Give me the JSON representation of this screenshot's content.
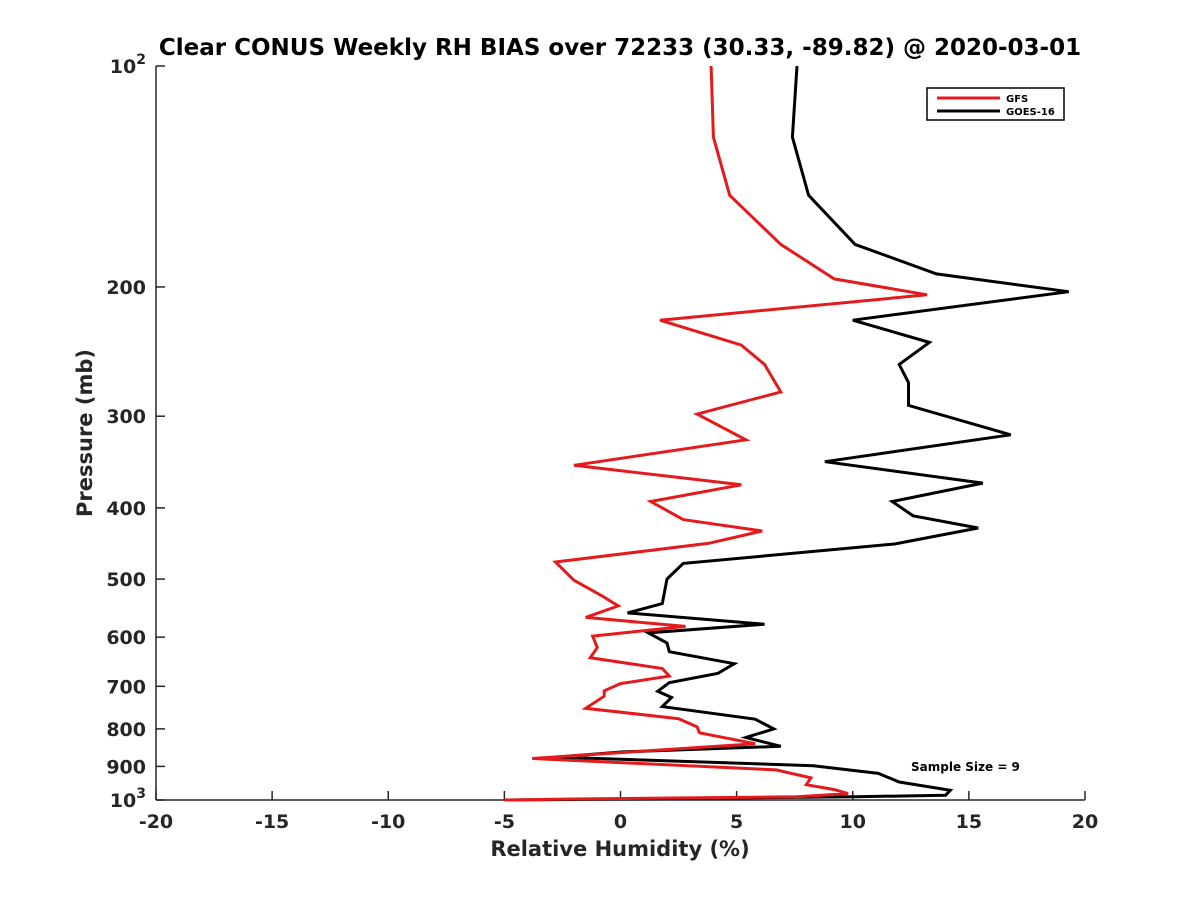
{
  "chart_data": {
    "type": "line",
    "title": "Clear CONUS Weekly RH BIAS over 72233 (30.33, -89.82) @ 2020-03-01",
    "xlabel": "Relative Humidity (%)",
    "ylabel": "Pressure (mb)",
    "xlim": [
      -20,
      20
    ],
    "ylim": [
      1000,
      100
    ],
    "y_scale": "log",
    "y_reversed": true,
    "x_ticks": [
      "-20",
      "-15",
      "-10",
      "-5",
      "0",
      "5",
      "10",
      "15",
      "20"
    ],
    "x_tick_values": [
      -20,
      -15,
      -10,
      -5,
      0,
      5,
      10,
      15,
      20
    ],
    "y_ticks": [
      {
        "value": 100,
        "base": "10",
        "exp": "2"
      },
      {
        "value": 200,
        "label": "200"
      },
      {
        "value": 300,
        "label": "300"
      },
      {
        "value": 400,
        "label": "400"
      },
      {
        "value": 500,
        "label": "500"
      },
      {
        "value": 600,
        "label": "600"
      },
      {
        "value": 700,
        "label": "700"
      },
      {
        "value": 800,
        "label": "800"
      },
      {
        "value": 900,
        "label": "900"
      },
      {
        "value": 1000,
        "base": "10",
        "exp": "3"
      }
    ],
    "grid": false,
    "legend_position": "top-right",
    "annotation": "Sample Size = 9",
    "series": [
      {
        "name": "GFS",
        "color": "#e41a1c",
        "points": [
          [
            3.9,
            100
          ],
          [
            4.0,
            125
          ],
          [
            4.7,
            150
          ],
          [
            6.9,
            175
          ],
          [
            9.2,
            195
          ],
          [
            13.2,
            205
          ],
          [
            1.7,
            222
          ],
          [
            5.2,
            240
          ],
          [
            6.2,
            255
          ],
          [
            6.9,
            278
          ],
          [
            3.3,
            298
          ],
          [
            5.4,
            323
          ],
          [
            -2.0,
            350
          ],
          [
            5.2,
            372
          ],
          [
            1.3,
            392
          ],
          [
            2.7,
            415
          ],
          [
            6.1,
            430
          ],
          [
            3.8,
            447
          ],
          [
            -2.8,
            474
          ],
          [
            -2.0,
            502
          ],
          [
            -0.8,
            527
          ],
          [
            -0.1,
            544
          ],
          [
            -1.5,
            564
          ],
          [
            2.8,
            580
          ],
          [
            -1.2,
            598
          ],
          [
            -1.0,
            620
          ],
          [
            -1.3,
            640
          ],
          [
            1.8,
            662
          ],
          [
            2.1,
            678
          ],
          [
            0.0,
            694
          ],
          [
            -0.7,
            710
          ],
          [
            -0.7,
            722
          ],
          [
            -1.5,
            750
          ],
          [
            2.5,
            775
          ],
          [
            3.3,
            795
          ],
          [
            3.4,
            810
          ],
          [
            5.8,
            838
          ],
          [
            -3.8,
            878
          ],
          [
            6.7,
            910
          ],
          [
            8.2,
            933
          ],
          [
            8.0,
            953
          ],
          [
            9.2,
            968
          ],
          [
            9.8,
            980
          ],
          [
            7.6,
            990
          ],
          [
            -2.0,
            997
          ],
          [
            -5.0,
            1000
          ]
        ]
      },
      {
        "name": "GOES-16",
        "color": "#000000",
        "points": [
          [
            7.6,
            100
          ],
          [
            7.4,
            125
          ],
          [
            8.1,
            150
          ],
          [
            10.1,
            175
          ],
          [
            13.6,
            192
          ],
          [
            19.3,
            203
          ],
          [
            10.0,
            222
          ],
          [
            13.3,
            238
          ],
          [
            12.0,
            255
          ],
          [
            12.4,
            270
          ],
          [
            12.4,
            290
          ],
          [
            16.8,
            318
          ],
          [
            8.8,
            346
          ],
          [
            15.6,
            370
          ],
          [
            11.7,
            392
          ],
          [
            12.6,
            410
          ],
          [
            15.4,
            426
          ],
          [
            11.8,
            448
          ],
          [
            2.7,
            476
          ],
          [
            2.0,
            500
          ],
          [
            1.9,
            520
          ],
          [
            1.8,
            540
          ],
          [
            0.3,
            556
          ],
          [
            6.2,
            576
          ],
          [
            1.2,
            592
          ],
          [
            2.0,
            611
          ],
          [
            2.1,
            628
          ],
          [
            4.9,
            652
          ],
          [
            4.2,
            672
          ],
          [
            2.1,
            692
          ],
          [
            1.6,
            711
          ],
          [
            2.2,
            725
          ],
          [
            1.8,
            746
          ],
          [
            5.8,
            776
          ],
          [
            6.6,
            800
          ],
          [
            5.4,
            822
          ],
          [
            6.9,
            845
          ],
          [
            0.1,
            860
          ],
          [
            -2.8,
            874
          ],
          [
            8.3,
            898
          ],
          [
            11.1,
            920
          ],
          [
            12.0,
            945
          ],
          [
            14.2,
            970
          ],
          [
            14.0,
            985
          ],
          [
            10.1,
            990
          ],
          [
            -4.8,
            1000
          ]
        ]
      }
    ]
  }
}
